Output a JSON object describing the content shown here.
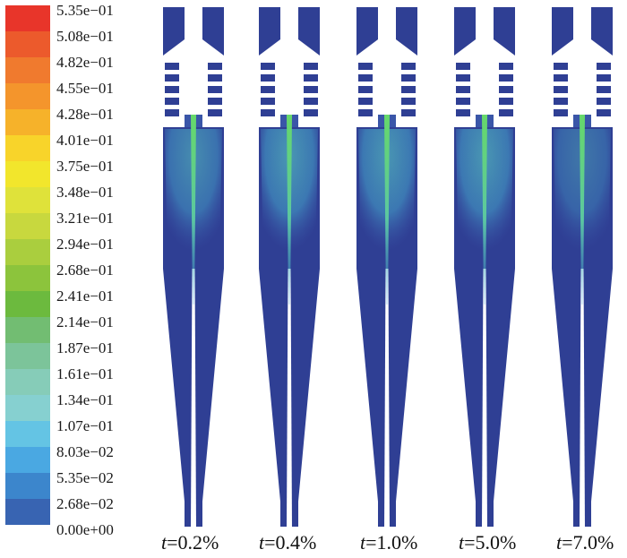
{
  "colorbar": {
    "labels": [
      "5.35e−01",
      "5.08e−01",
      "4.82e−01",
      "4.55e−01",
      "4.28e−01",
      "4.01e−01",
      "3.75e−01",
      "3.48e−01",
      "3.21e−01",
      "2.94e−01",
      "2.68e−01",
      "2.41e−01",
      "2.14e−01",
      "1.87e−01",
      "1.61e−01",
      "1.34e−01",
      "1.07e−01",
      "8.03e−02",
      "5.35e−02",
      "2.68e−02",
      "0.00e+00"
    ],
    "colors": [
      "#e8352a",
      "#ec5a2c",
      "#f07a2e",
      "#f4952c",
      "#f6b22a",
      "#f8d42a",
      "#f2e62c",
      "#dfe23a",
      "#c8d83e",
      "#aace3e",
      "#8cc43c",
      "#6cba3e",
      "#72bd72",
      "#7cc49a",
      "#86ccb8",
      "#86d0d0",
      "#64c4e4",
      "#4aa8e2",
      "#3c86cc",
      "#3864b2",
      "#2e4a9a"
    ]
  },
  "captions": [
    {
      "var": "t",
      "value": "=0.2%"
    },
    {
      "var": "t",
      "value": "=0.4%"
    },
    {
      "var": "t",
      "value": "=1.0%"
    },
    {
      "var": "t",
      "value": "=5.0%"
    },
    {
      "var": "t",
      "value": "=7.0%"
    }
  ],
  "colors": {
    "body": "#2f3f94",
    "body_light": "#3a56a8",
    "core": "#66d86a",
    "plume": "#3e82b8",
    "plume_mid": "#4ea6b8"
  }
}
